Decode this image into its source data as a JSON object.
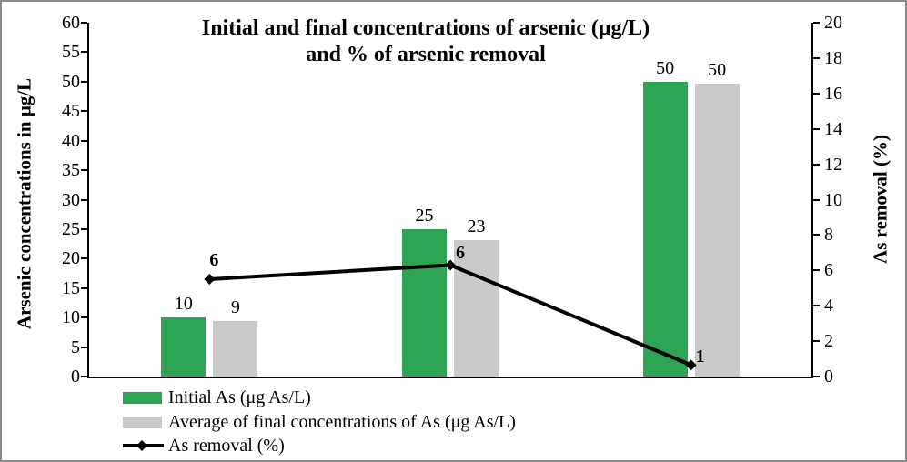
{
  "frame": {
    "background": "#ffffff",
    "border_color": "#8a8a8a"
  },
  "chart_data": {
    "type": "combo-bar-line",
    "title_lines": [
      "Initial and final concentrations of arsenic (μg/L)",
      "and % of arsenic removal"
    ],
    "categories": [
      "",
      "",
      ""
    ],
    "left_axis": {
      "label": "Arsenic concentrations in μg/L",
      "min": 0,
      "max": 60,
      "step": 5,
      "ticks": [
        "0",
        "5",
        "10",
        "15",
        "20",
        "25",
        "30",
        "35",
        "40",
        "45",
        "50",
        "55",
        "60"
      ]
    },
    "right_axis": {
      "label": "As removal (%)",
      "min": 0,
      "max": 20,
      "step": 2,
      "ticks": [
        "0",
        "2",
        "4",
        "6",
        "8",
        "10",
        "12",
        "14",
        "16",
        "18",
        "20"
      ]
    },
    "series": [
      {
        "name": "Initial As (μg As/L)",
        "type": "bar",
        "axis": "left",
        "color": "#2da453",
        "values": [
          10,
          25,
          50
        ],
        "labels": [
          "10",
          "25",
          "50"
        ]
      },
      {
        "name": "Average of final concentrations of As (μg As/L)",
        "type": "bar",
        "axis": "left",
        "color": "#cacaca",
        "values": [
          9.4,
          23.2,
          49.7
        ],
        "labels": [
          "9",
          "23",
          "50"
        ]
      },
      {
        "name": "As removal (%)",
        "type": "line",
        "axis": "right",
        "color": "#000000",
        "values": [
          5.5,
          6.3,
          0.65
        ],
        "labels": [
          "6",
          "6",
          "1"
        ]
      }
    ],
    "legend_position": "bottom-left",
    "grid": false
  }
}
